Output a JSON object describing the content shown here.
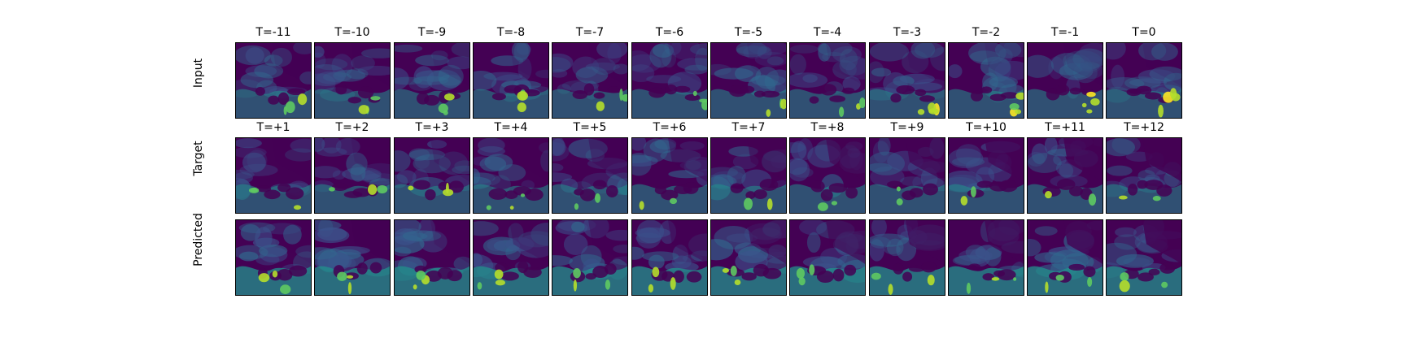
{
  "figure": {
    "rows": [
      {
        "label": "Input",
        "titles": [
          "T=-11",
          "T=-10",
          "T=-9",
          "T=-8",
          "T=-7",
          "T=-6",
          "T=-5",
          "T=-4",
          "T=-3",
          "T=-2",
          "T=-1",
          "T=0"
        ]
      },
      {
        "label": "Target",
        "titles": [
          "T=+1",
          "T=+2",
          "T=+3",
          "T=+4",
          "T=+5",
          "T=+6",
          "T=+7",
          "T=+8",
          "T=+9",
          "T=+10",
          "T=+11",
          "T=+12"
        ]
      },
      {
        "label": "Predicted",
        "titles": []
      }
    ],
    "colormap": "viridis",
    "colors": [
      "#440154",
      "#3b528b",
      "#21918c",
      "#5ec962",
      "#fde725"
    ]
  }
}
